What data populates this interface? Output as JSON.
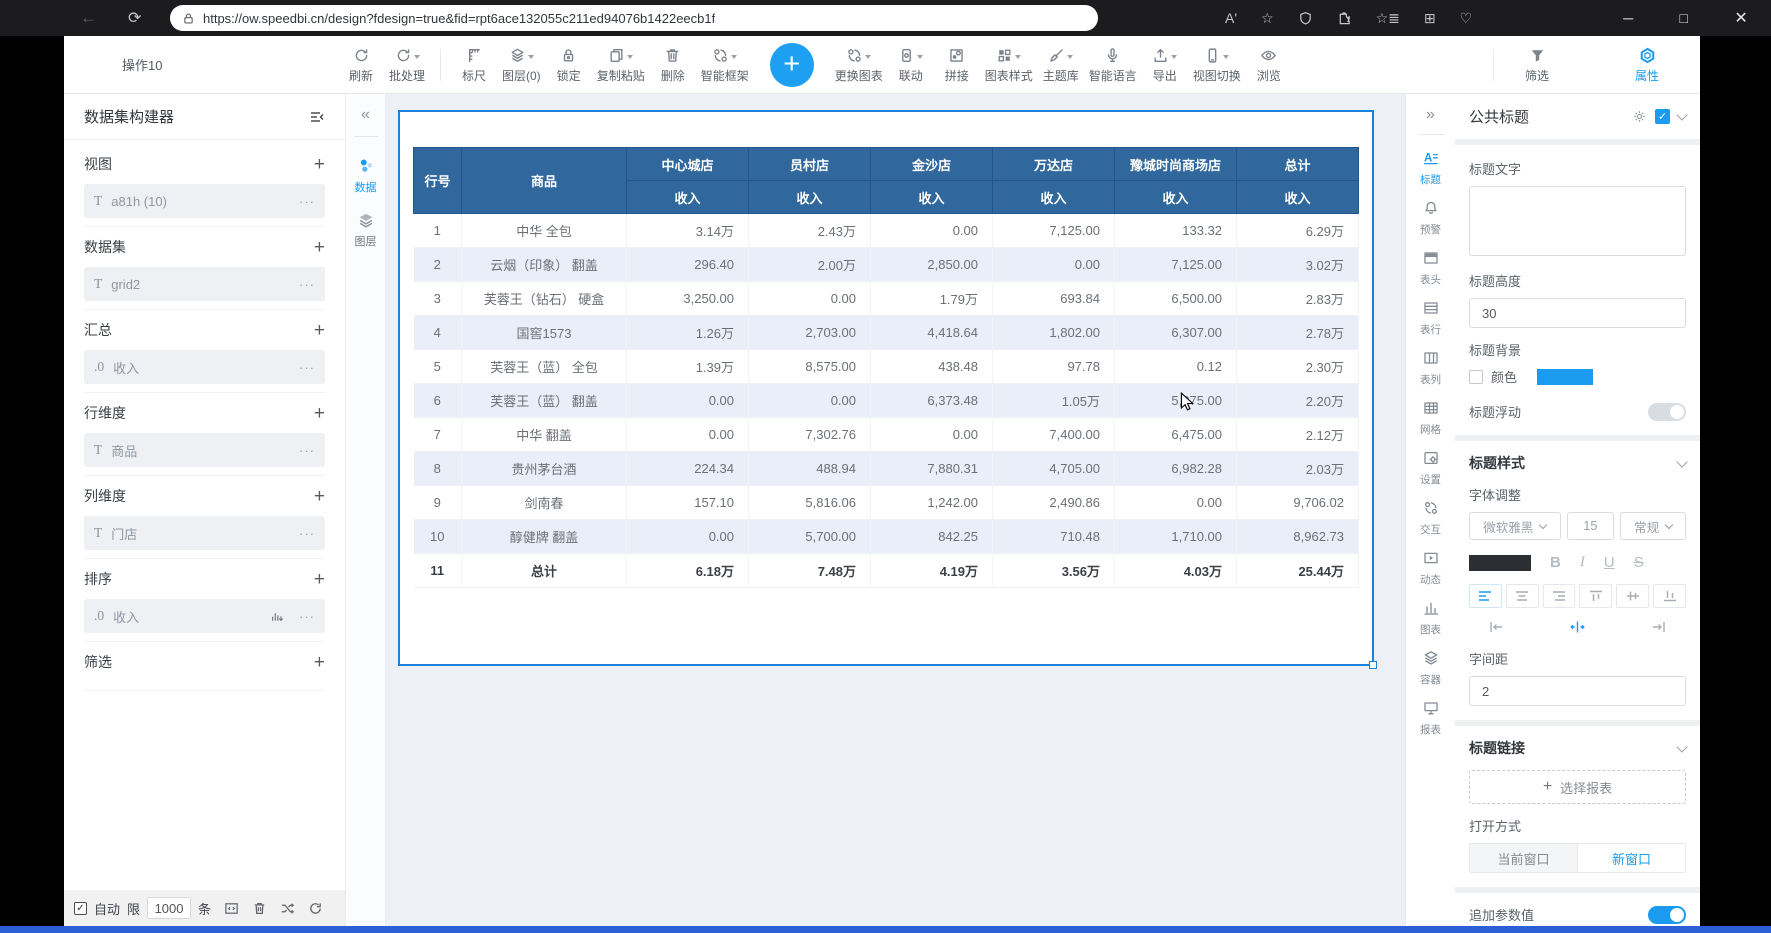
{
  "browser": {
    "url": "https://ow.speedbi.cn/design?fdesign=true&fid=rpt6ace132055c211ed94076b1422eecb1f"
  },
  "toolbar": {
    "doc_name": "操作10",
    "buttons": [
      {
        "name": "refresh",
        "icon": "refresh-icon",
        "label": "刷新",
        "caret": false
      },
      {
        "name": "batch",
        "icon": "batch-icon",
        "label": "批处理",
        "caret": true
      },
      {
        "name": "ruler",
        "icon": "ruler-icon",
        "label": "标尺",
        "caret": false,
        "divider_before": true
      },
      {
        "name": "layers",
        "icon": "layers-icon",
        "label": "图层(0)",
        "caret": true
      },
      {
        "name": "lock",
        "icon": "lock-icon",
        "label": "锁定",
        "caret": false
      },
      {
        "name": "copy-paste",
        "icon": "copy-paste-icon",
        "label": "复制粘贴",
        "caret": true
      },
      {
        "name": "delete",
        "icon": "delete-icon",
        "label": "删除",
        "caret": false
      },
      {
        "name": "smart-frame",
        "icon": "smart-frame-icon",
        "label": "智能框架",
        "caret": true
      },
      {
        "name": "add-chart",
        "icon": "add-icon",
        "label": "",
        "big": true
      },
      {
        "name": "change-chart",
        "icon": "change-chart-icon",
        "label": "更换图表",
        "caret": true
      },
      {
        "name": "linkage",
        "icon": "linkage-icon",
        "label": "联动",
        "caret": true
      },
      {
        "name": "splice",
        "icon": "splice-icon",
        "label": "拼接",
        "caret": false
      },
      {
        "name": "chart-style",
        "icon": "chart-style-icon",
        "label": "图表样式",
        "caret": true
      },
      {
        "name": "theme-lib",
        "icon": "theme-lib-icon",
        "label": "主题库",
        "caret": true
      },
      {
        "name": "smart-voice",
        "icon": "voice-icon",
        "label": "智能语言",
        "caret": false
      },
      {
        "name": "export",
        "icon": "export-icon",
        "label": "导出",
        "caret": true
      },
      {
        "name": "view-switch",
        "icon": "view-switch-icon",
        "label": "视图切换",
        "caret": true
      },
      {
        "name": "browse",
        "icon": "browse-icon",
        "label": "浏览",
        "caret": false
      }
    ],
    "filter_label": "筛选",
    "properties_label": "属性"
  },
  "sidebar": {
    "title": "数据集构建器",
    "sections": [
      {
        "label": "视图",
        "items": [
          {
            "prefix": "T",
            "text": "a81h (10)"
          }
        ]
      },
      {
        "label": "数据集",
        "items": [
          {
            "prefix": "T",
            "text": "grid2"
          }
        ]
      },
      {
        "label": "汇总",
        "items": [
          {
            "prefix": ".0",
            "text": "收入"
          }
        ]
      },
      {
        "label": "行维度",
        "items": [
          {
            "prefix": "T",
            "text": "商品"
          }
        ]
      },
      {
        "label": "列维度",
        "items": [
          {
            "prefix": "T",
            "text": "门店"
          }
        ]
      },
      {
        "label": "排序",
        "items": [
          {
            "prefix": ".0",
            "text": "收入",
            "sort": true
          }
        ]
      },
      {
        "label": "筛选",
        "items": []
      }
    ],
    "footer": {
      "auto": "自动",
      "limit": "限",
      "count": "1000",
      "unit": "条"
    }
  },
  "midrail": {
    "data_label": "数据",
    "layers_label": "图层"
  },
  "table": {
    "col_row_no": "行号",
    "col_product": "商品",
    "stores": [
      "中心城店",
      "员村店",
      "金沙店",
      "万达店",
      "豫城时尚商场店",
      "总计"
    ],
    "sub_header": "收入",
    "rows": [
      {
        "no": "1",
        "product": "中华 全包",
        "values": [
          "3.14万",
          "2.43万",
          "0.00",
          "7,125.00",
          "133.32",
          "6.29万"
        ]
      },
      {
        "no": "2",
        "product": "云烟（印象） 翻盖",
        "values": [
          "296.40",
          "2.00万",
          "2,850.00",
          "0.00",
          "7,125.00",
          "3.02万"
        ]
      },
      {
        "no": "3",
        "product": "芙蓉王（钻石） 硬盒",
        "values": [
          "3,250.00",
          "0.00",
          "1.79万",
          "693.84",
          "6,500.00",
          "2.83万"
        ]
      },
      {
        "no": "4",
        "product": "国窖1573",
        "values": [
          "1.26万",
          "2,703.00",
          "4,418.64",
          "1,802.00",
          "6,307.00",
          "2.78万"
        ]
      },
      {
        "no": "5",
        "product": "芙蓉王（蓝） 全包",
        "values": [
          "1.39万",
          "8,575.00",
          "438.48",
          "97.78",
          "0.12",
          "2.30万"
        ]
      },
      {
        "no": "6",
        "product": "芙蓉王（蓝） 翻盖",
        "values": [
          "0.00",
          "0.00",
          "6,373.48",
          "1.05万",
          "5,075.00",
          "2.20万"
        ]
      },
      {
        "no": "7",
        "product": "中华 翻盖",
        "values": [
          "0.00",
          "7,302.76",
          "0.00",
          "7,400.00",
          "6,475.00",
          "2.12万"
        ]
      },
      {
        "no": "8",
        "product": "贵州茅台酒",
        "values": [
          "224.34",
          "488.94",
          "7,880.31",
          "4,705.00",
          "6,982.28",
          "2.03万"
        ]
      },
      {
        "no": "9",
        "product": "剑南春",
        "values": [
          "157.10",
          "5,816.06",
          "1,242.00",
          "2,490.86",
          "0.00",
          "9,706.02"
        ]
      },
      {
        "no": "10",
        "product": "醇健牌 翻盖",
        "values": [
          "0.00",
          "5,700.00",
          "842.25",
          "710.48",
          "1,710.00",
          "8,962.73"
        ]
      },
      {
        "no": "11",
        "product": "总计",
        "total": true,
        "values": [
          "6.18万",
          "7.48万",
          "4.19万",
          "3.56万",
          "4.03万",
          "25.44万"
        ]
      }
    ]
  },
  "right_rail": {
    "items": [
      {
        "name": "title",
        "icon": "title-icon",
        "label": "标题",
        "active": true
      },
      {
        "name": "alert",
        "icon": "alert-icon",
        "label": "预警",
        "active": false
      },
      {
        "name": "table-head",
        "icon": "table-head-icon",
        "label": "表头",
        "active": false
      },
      {
        "name": "table-row",
        "icon": "table-row-icon",
        "label": "表行",
        "active": false
      },
      {
        "name": "table-col",
        "icon": "table-col-icon",
        "label": "表列",
        "active": false
      },
      {
        "name": "grid",
        "icon": "grid-icon",
        "label": "网格",
        "active": false
      },
      {
        "name": "settings",
        "icon": "settings-icon",
        "label": "设置",
        "active": false
      },
      {
        "name": "interact",
        "icon": "interact-icon",
        "label": "交互",
        "active": false
      },
      {
        "name": "dynamic",
        "icon": "dynamic-icon",
        "label": "动态",
        "active": false
      },
      {
        "name": "chart",
        "icon": "chart-icon",
        "label": "图表",
        "active": false
      },
      {
        "name": "container",
        "icon": "container-icon",
        "label": "容器",
        "active": false
      },
      {
        "name": "report",
        "icon": "report-icon",
        "label": "报表",
        "active": false
      }
    ]
  },
  "properties": {
    "panel_title": "公共标题",
    "title_text_label": "标题文字",
    "title_text_value": "",
    "title_height_label": "标题高度",
    "title_height_value": "30",
    "title_bg_label": "标题背景",
    "color_label": "颜色",
    "title_float_label": "标题浮动",
    "style_section_title": "标题样式",
    "font_adjust_label": "字体调整",
    "font_family_value": "微软雅黑",
    "font_size_value": "15",
    "font_weight_value": "常规",
    "letter_spacing_label": "字间距",
    "letter_spacing_value": "2",
    "link_section_title": "标题链接",
    "select_report_label": "选择报表",
    "open_mode_label": "打开方式",
    "open_current_label": "当前窗口",
    "open_new_label": "新窗口",
    "append_param_label": "追加参数值"
  },
  "colors": {
    "accent": "#1a9bf0",
    "table_header": "#30689d",
    "selection_border": "#1a82dc",
    "row_alt": "#e9eef8",
    "bottom_strip": "#2c5ed6"
  }
}
